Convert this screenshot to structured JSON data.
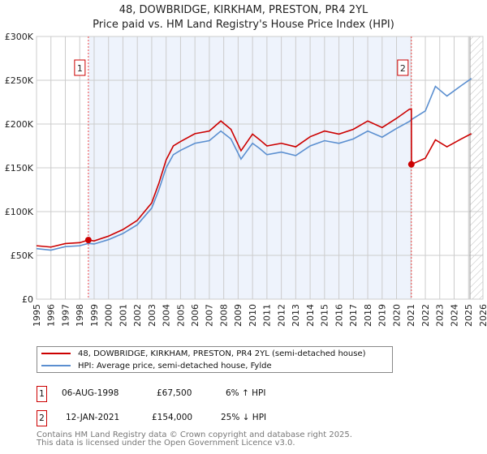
{
  "chart_data": {
    "type": "line",
    "title": "48, DOWBRIDGE, KIRKHAM, PRESTON, PR4 2YL",
    "subtitle": "Price paid vs. HM Land Registry's House Price Index (HPI)",
    "xlim": [
      1995,
      2026
    ],
    "ylim": [
      0,
      300000
    ],
    "x_ticks": [
      "1995",
      "1996",
      "1997",
      "1998",
      "1999",
      "2000",
      "2001",
      "2002",
      "2003",
      "2004",
      "2005",
      "2006",
      "2007",
      "2008",
      "2009",
      "2010",
      "2011",
      "2012",
      "2013",
      "2014",
      "2015",
      "2016",
      "2017",
      "2018",
      "2019",
      "2020",
      "2021",
      "2022",
      "2023",
      "2024",
      "2025",
      "2026"
    ],
    "y_ticks": [
      {
        "v": 0,
        "label": "£0"
      },
      {
        "v": 50000,
        "label": "£50K"
      },
      {
        "v": 100000,
        "label": "£100K"
      },
      {
        "v": 150000,
        "label": "£150K"
      },
      {
        "v": 200000,
        "label": "£200K"
      },
      {
        "v": 250000,
        "label": "£250K"
      },
      {
        "v": 300000,
        "label": "£300K"
      }
    ],
    "grid": true,
    "series": [
      {
        "name": "48, DOWBRIDGE, KIRKHAM, PRESTON, PR4 2YL (semi-detached house)",
        "color": "#cc0000",
        "x": [
          1995,
          1996,
          1997,
          1998,
          1998.6,
          1999,
          2000,
          2001,
          2002,
          2003,
          2003.5,
          2004,
          2004.5,
          2005,
          2006,
          2007,
          2007.8,
          2008.5,
          2009.2,
          2010,
          2010.5,
          2011,
          2012,
          2013,
          2014,
          2015,
          2016,
          2017,
          2018,
          2019,
          2020,
          2020.9,
          2021.03,
          2021.04,
          2022,
          2022.7,
          2023.5,
          2024.5,
          2025.2
        ],
        "y": [
          61000,
          59500,
          63500,
          64500,
          67500,
          66500,
          72000,
          79500,
          90000,
          110000,
          132500,
          159000,
          175000,
          180000,
          189000,
          192000,
          203500,
          194000,
          169500,
          188500,
          182000,
          175000,
          178000,
          174000,
          185500,
          192000,
          188500,
          194000,
          203500,
          196000,
          206500,
          217000,
          217000,
          154000,
          161000,
          182000,
          174000,
          183000,
          189000
        ]
      },
      {
        "name": "HPI: Average price, semi-detached house, Fylde",
        "color": "#5b8fd0",
        "x": [
          1995,
          1996,
          1997,
          1998,
          1998.6,
          1999,
          2000,
          2001,
          2002,
          2003,
          2003.5,
          2004,
          2004.5,
          2005,
          2006,
          2007,
          2007.8,
          2008.5,
          2009.2,
          2010,
          2010.5,
          2011,
          2012,
          2013,
          2014,
          2015,
          2016,
          2017,
          2018,
          2019,
          2020,
          2020.9,
          2021.03,
          2022,
          2022.7,
          2023.5,
          2024.5,
          2025.2
        ],
        "y": [
          57700,
          56000,
          60000,
          61000,
          63700,
          63000,
          68000,
          75000,
          85000,
          104000,
          125000,
          150000,
          165000,
          170000,
          178000,
          181000,
          192000,
          183000,
          160000,
          178000,
          172000,
          165000,
          168000,
          164000,
          175000,
          181000,
          178000,
          183000,
          192000,
          185000,
          195000,
          203000,
          205000,
          215000,
          243000,
          232000,
          244000,
          252000
        ]
      }
    ],
    "sales": [
      {
        "id": "1",
        "x": 1998.6,
        "date": "06-AUG-1998",
        "price": 67500,
        "price_label": "£67,500",
        "hpi_diff": "6% ↑ HPI"
      },
      {
        "id": "2",
        "x": 2021.03,
        "date": "12-JAN-2021",
        "price": 154000,
        "price_label": "£154,000",
        "hpi_diff": "25% ↓ HPI"
      }
    ],
    "shaded_range": [
      1998.6,
      2021.03
    ],
    "hatched_from": 2025.1,
    "legend_placement": "below"
  },
  "colors": {
    "red": "#cc0000",
    "blue": "#5b8fd0",
    "shade": "#eef3fc"
  },
  "footer": {
    "line1": "Contains HM Land Registry data © Crown copyright and database right 2025.",
    "line2": "This data is licensed under the Open Government Licence v3.0."
  }
}
